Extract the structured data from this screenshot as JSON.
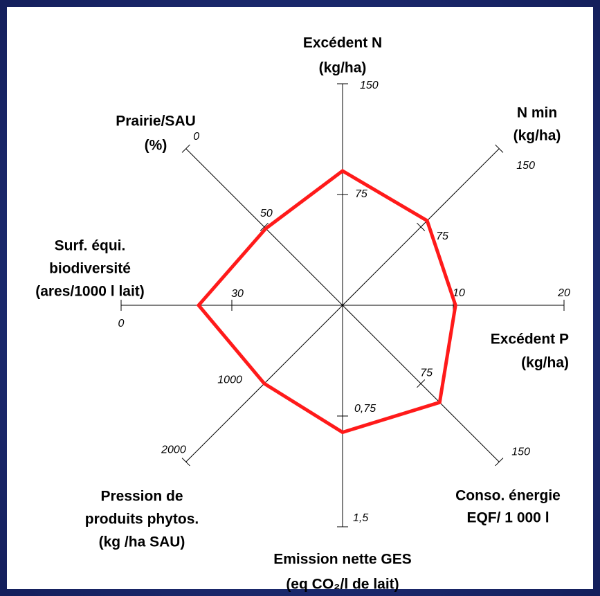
{
  "chart_data": {
    "type": "radar",
    "color": "#ff1a1a",
    "axes": [
      {
        "label": [
          "Excédent N",
          "(kg/ha)"
        ],
        "range": [
          0,
          150
        ],
        "ticks": [
          75,
          150
        ]
      },
      {
        "label": [
          "N min",
          "(kg/ha)"
        ],
        "range": [
          0,
          150
        ],
        "ticks": [
          75,
          150
        ]
      },
      {
        "label": [
          "Excédent P",
          "(kg/ha)"
        ],
        "range": [
          0,
          20
        ],
        "ticks": [
          10,
          20
        ]
      },
      {
        "label": [
          "Conso. énergie",
          "EQF/ 1 000 l"
        ],
        "range": [
          0,
          150
        ],
        "ticks": [
          75,
          150
        ]
      },
      {
        "label": [
          "Emission nette GES",
          "(eq CO₂/l de lait)"
        ],
        "range": [
          0,
          1.5
        ],
        "ticks": [
          {
            "value": 0.75,
            "label": "0,75"
          },
          {
            "value": 1.5,
            "label": "1,5"
          }
        ]
      },
      {
        "label": [
          "Pression de",
          "produits phytos.",
          "(kg /ha SAU)"
        ],
        "range": [
          0,
          2000
        ],
        "ticks": [
          1000,
          2000
        ]
      },
      {
        "label": [
          "Surf. équi.",
          "biodiversité",
          "(ares/1000 l lait)"
        ],
        "range": [
          60,
          0
        ],
        "ticks": [
          30,
          0
        ]
      },
      {
        "label": [
          "Prairie/SAU",
          "(%)"
        ],
        "range": [
          100,
          0
        ],
        "ticks": [
          50,
          0
        ]
      }
    ],
    "series": [
      {
        "color": "#ff1a1a",
        "values": [
          91,
          81,
          10.2,
          93,
          0.86,
          1000,
          21,
          51
        ]
      }
    ]
  }
}
